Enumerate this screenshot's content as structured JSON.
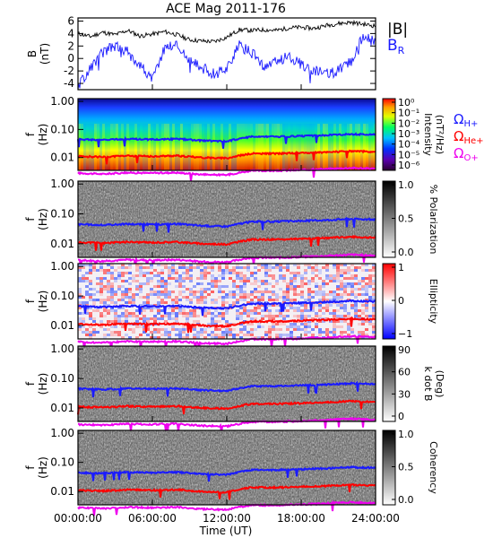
{
  "chart_data": {
    "title": "ACE Mag 2011-176",
    "type": "multi-panel",
    "x": {
      "label": "Time (UT)",
      "ticks": [
        "00:00:00",
        "06:00:00",
        "12:00:00",
        "18:00:00",
        "24:00:00"
      ],
      "range_hours": [
        0,
        24
      ]
    },
    "legend_b": [
      {
        "label": "|B|",
        "color": "#000000"
      },
      {
        "label": "B",
        "sub": "R",
        "color": "#1a1aff"
      }
    ],
    "legend_cyclotron": [
      {
        "label": "Ω",
        "sub": "H+",
        "color": "#1a1aff"
      },
      {
        "label": "Ω",
        "sub": "He+",
        "color": "#ff0000"
      },
      {
        "label": "Ω",
        "sub": "O+",
        "color": "#ee00ee"
      }
    ],
    "panels": [
      {
        "id": "b-field",
        "type": "line",
        "ylabel": "B",
        "yunit": "(nT)",
        "yticks": [
          "6",
          "4",
          "2",
          "0",
          "-2",
          "-4"
        ],
        "yrange": [
          -5,
          6.5
        ],
        "series": [
          {
            "name": "|B|",
            "color": "#000000",
            "x": [
              0,
              1,
              2,
              3,
              4,
              5,
              6,
              7,
              8,
              9,
              10,
              11,
              12,
              13,
              14,
              15,
              16,
              17,
              18,
              19,
              20,
              21,
              22,
              23,
              24
            ],
            "y": [
              4.0,
              3.5,
              4.2,
              3.8,
              4.5,
              3.6,
              3.9,
              4.3,
              3.8,
              3.0,
              2.8,
              2.7,
              3.4,
              4.6,
              4.5,
              4.6,
              4.5,
              4.9,
              5.0,
              4.8,
              5.3,
              5.6,
              5.8,
              5.5,
              5.2
            ]
          },
          {
            "name": "B_R",
            "color": "#1a1aff",
            "x": [
              0,
              1,
              2,
              3,
              4,
              5,
              6,
              7,
              8,
              9,
              10,
              11,
              12,
              13,
              14,
              15,
              16,
              17,
              18,
              19,
              20,
              21,
              22,
              23,
              24
            ],
            "y": [
              -4.5,
              -1.5,
              1.0,
              2.0,
              1.0,
              -1.0,
              -3.5,
              1.8,
              2.2,
              -0.5,
              -1.5,
              -2.5,
              -1.5,
              2.0,
              1.0,
              -1.5,
              -0.5,
              0.5,
              -1.0,
              -2.0,
              -2.5,
              -2.0,
              -0.5,
              3.5,
              2.5
            ]
          }
        ]
      },
      {
        "id": "intensity",
        "type": "heatmap",
        "ylabel": "f",
        "yunit": "(Hz)",
        "yticks": [
          "1.00",
          "0.10",
          "0.01"
        ],
        "colorbar": {
          "label": "Intensity",
          "unit": "(nT²/Hz)",
          "scheme": "rainbow",
          "ticks": [
            "10⁰",
            "10⁻¹",
            "10⁻²",
            "10⁻³",
            "10⁻⁴",
            "10⁻⁵",
            "10⁻⁶"
          ]
        }
      },
      {
        "id": "polarization",
        "type": "heatmap",
        "ylabel": "f",
        "yunit": "(Hz)",
        "yticks": [
          "1.00",
          "0.10",
          "0.01"
        ],
        "colorbar": {
          "label": "% Polarization",
          "unit": "",
          "scheme": "gray",
          "ticks": [
            "1.0",
            "0.5",
            "0.0"
          ]
        }
      },
      {
        "id": "ellipticity",
        "type": "heatmap",
        "ylabel": "f",
        "yunit": "(Hz)",
        "yticks": [
          "1.00",
          "0.10",
          "0.01"
        ],
        "colorbar": {
          "label": "Ellipticity",
          "unit": "",
          "scheme": "bwr",
          "ticks": [
            "1",
            "0",
            "−1"
          ]
        }
      },
      {
        "id": "kdotb",
        "type": "heatmap",
        "ylabel": "f",
        "yunit": "(Hz)",
        "yticks": [
          "1.00",
          "0.10",
          "0.01"
        ],
        "colorbar": {
          "label": "k dot B",
          "unit": "(Deg)",
          "scheme": "gray",
          "ticks": [
            "90",
            "60",
            "30",
            "0"
          ]
        }
      },
      {
        "id": "coherency",
        "type": "heatmap",
        "ylabel": "f",
        "yunit": "(Hz)",
        "yticks": [
          "1.00",
          "0.10",
          "0.01"
        ],
        "colorbar": {
          "label": "Coherency",
          "unit": "",
          "scheme": "gray",
          "ticks": [
            "1.0",
            "0.5",
            "0.0"
          ]
        }
      }
    ],
    "cyclotron_lines": [
      {
        "name": "Ω_H+",
        "color": "#1a1aff",
        "x": [
          0,
          2,
          4,
          6,
          8,
          10,
          12,
          14,
          16,
          18,
          20,
          22,
          24
        ],
        "y_hz": [
          0.045,
          0.042,
          0.046,
          0.044,
          0.046,
          0.04,
          0.038,
          0.055,
          0.055,
          0.058,
          0.062,
          0.068,
          0.065
        ]
      },
      {
        "name": "Ω_He+",
        "color": "#ff0000",
        "x": [
          0,
          2,
          4,
          6,
          8,
          10,
          12,
          14,
          16,
          18,
          20,
          22,
          24
        ],
        "y_hz": [
          0.011,
          0.0105,
          0.0115,
          0.011,
          0.0115,
          0.01,
          0.0095,
          0.0138,
          0.0138,
          0.0145,
          0.0155,
          0.017,
          0.016
        ]
      },
      {
        "name": "Ω_O+",
        "color": "#ee00ee",
        "x": [
          0,
          2,
          4,
          6,
          8,
          10,
          12,
          14,
          16,
          18,
          20,
          22,
          24
        ],
        "y_hz": [
          0.0028,
          0.0026,
          0.0029,
          0.0028,
          0.0029,
          0.0025,
          0.0024,
          0.0034,
          0.0034,
          0.0036,
          0.0039,
          0.0043,
          0.004
        ]
      }
    ]
  }
}
